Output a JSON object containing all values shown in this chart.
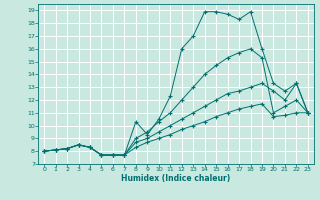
{
  "xlabel": "Humidex (Indice chaleur)",
  "xlim": [
    -0.5,
    23.5
  ],
  "ylim": [
    7,
    19.5
  ],
  "yticks": [
    7,
    8,
    9,
    10,
    11,
    12,
    13,
    14,
    15,
    16,
    17,
    18,
    19
  ],
  "xticks": [
    0,
    1,
    2,
    3,
    4,
    5,
    6,
    7,
    8,
    9,
    10,
    11,
    12,
    13,
    14,
    15,
    16,
    17,
    18,
    19,
    20,
    21,
    22,
    23
  ],
  "bg_color": "#c8e8e0",
  "grid_color": "#ffffff",
  "line_color": "#007070",
  "lines": [
    {
      "x": [
        0,
        1,
        2,
        3,
        4,
        5,
        6,
        7,
        8,
        9,
        10,
        11,
        12,
        13,
        14,
        15,
        16,
        17,
        18,
        19,
        20,
        21,
        22,
        23
      ],
      "y": [
        8,
        8.1,
        8.2,
        8.5,
        8.3,
        7.7,
        7.7,
        7.7,
        10.3,
        9.3,
        10.5,
        12.3,
        16.0,
        17.0,
        18.9,
        18.9,
        18.7,
        18.3,
        18.9,
        16.0,
        13.3,
        12.7,
        13.3,
        11.0
      ]
    },
    {
      "x": [
        0,
        1,
        2,
        3,
        4,
        5,
        6,
        7,
        8,
        9,
        10,
        11,
        12,
        13,
        14,
        15,
        16,
        17,
        18,
        19,
        20,
        21,
        22,
        23
      ],
      "y": [
        8,
        8.1,
        8.2,
        8.5,
        8.3,
        7.7,
        7.7,
        7.7,
        9.0,
        9.5,
        10.3,
        11.0,
        12.0,
        13.0,
        14.0,
        14.7,
        15.3,
        15.7,
        16.0,
        15.3,
        11.0,
        11.5,
        12.0,
        11.0
      ]
    },
    {
      "x": [
        0,
        1,
        2,
        3,
        4,
        5,
        6,
        7,
        8,
        9,
        10,
        11,
        12,
        13,
        14,
        15,
        16,
        17,
        18,
        19,
        20,
        21,
        22,
        23
      ],
      "y": [
        8,
        8.1,
        8.2,
        8.5,
        8.3,
        7.7,
        7.7,
        7.7,
        8.7,
        9.0,
        9.5,
        10.0,
        10.5,
        11.0,
        11.5,
        12.0,
        12.5,
        12.7,
        13.0,
        13.3,
        12.7,
        12.0,
        13.3,
        11.0
      ]
    },
    {
      "x": [
        0,
        1,
        2,
        3,
        4,
        5,
        6,
        7,
        8,
        9,
        10,
        11,
        12,
        13,
        14,
        15,
        16,
        17,
        18,
        19,
        20,
        21,
        22,
        23
      ],
      "y": [
        8,
        8.1,
        8.2,
        8.5,
        8.3,
        7.7,
        7.7,
        7.7,
        8.3,
        8.7,
        9.0,
        9.3,
        9.7,
        10.0,
        10.3,
        10.7,
        11.0,
        11.3,
        11.5,
        11.7,
        10.7,
        10.8,
        11.0,
        11.0
      ]
    }
  ]
}
